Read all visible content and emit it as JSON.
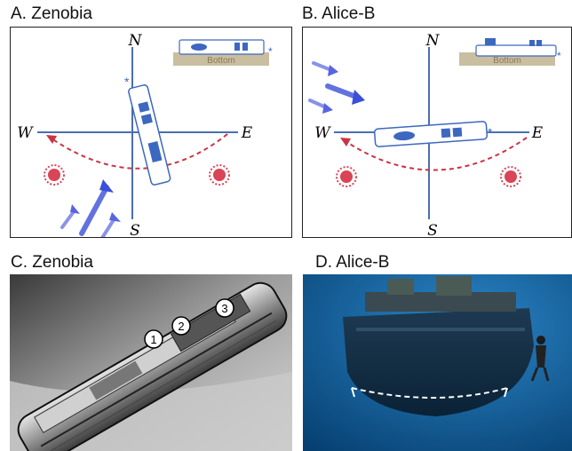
{
  "panels": {
    "a": {
      "title": "A. Zenobia"
    },
    "b": {
      "title": "B. Alice-B"
    },
    "c": {
      "title": "C. Zenobia"
    },
    "d": {
      "title": "D. Alice-B"
    }
  },
  "compass": {
    "north": "N",
    "south": "S",
    "east": "E",
    "west": "W"
  },
  "inset": {
    "bottom_label": "Bottom",
    "bow_marker": "*"
  },
  "photo_markers": [
    "1",
    "2",
    "3"
  ],
  "colors": {
    "axis": "#4a6fb0",
    "ship_blocks": "#3d68c0",
    "arc": "#cc3344",
    "current_arrows": "#3b4fd8",
    "seabed": "#c9bea0",
    "sea": "#0d5d9c",
    "outline_dashes": "#ffffff"
  }
}
